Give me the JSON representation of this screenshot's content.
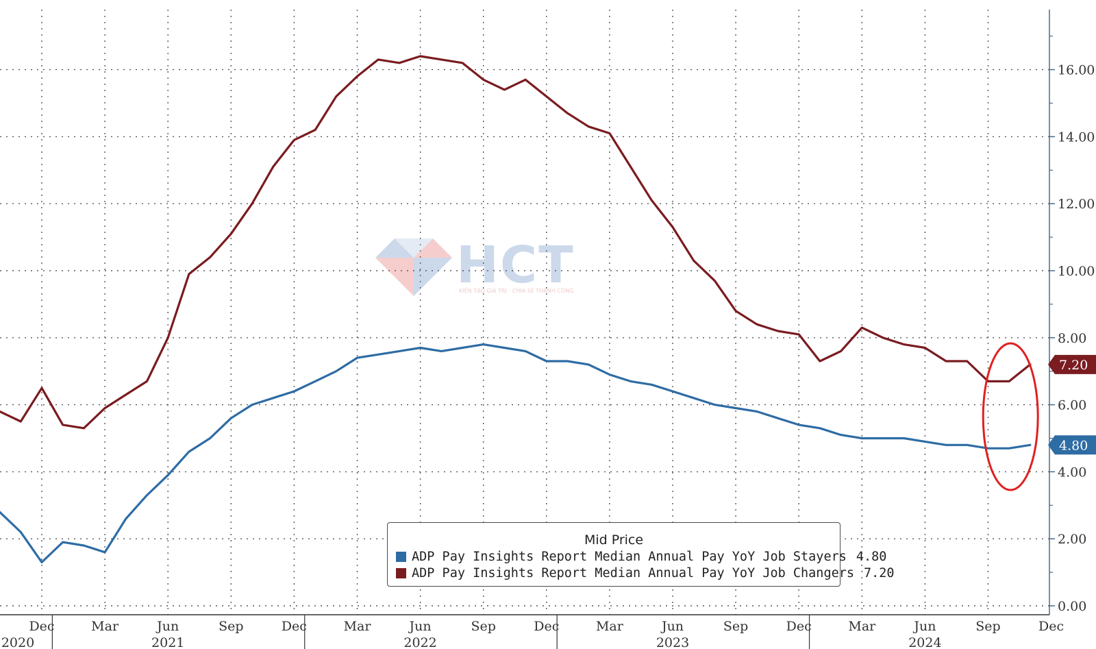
{
  "chart_data": {
    "type": "line",
    "legend": {
      "title": "Mid Price",
      "placement": "bottom-center"
    },
    "y_axis": {
      "side": "right",
      "ylim": [
        0,
        17.6
      ],
      "ticks": [
        0,
        2,
        4,
        6,
        8,
        10,
        12,
        14,
        16
      ],
      "tick_labels": [
        "0.00",
        "2.00",
        "4.00",
        "6.00",
        "8.00",
        "10.00",
        "12.00",
        "14.00",
        "16.00"
      ]
    },
    "x_axis": {
      "range": [
        "2020-10",
        "2024-12"
      ],
      "month_ticks": [
        {
          "date": "2020-12",
          "label": "Dec"
        },
        {
          "date": "2021-03",
          "label": "Mar"
        },
        {
          "date": "2021-06",
          "label": "Jun"
        },
        {
          "date": "2021-09",
          "label": "Sep"
        },
        {
          "date": "2021-12",
          "label": "Dec"
        },
        {
          "date": "2022-03",
          "label": "Mar"
        },
        {
          "date": "2022-06",
          "label": "Jun"
        },
        {
          "date": "2022-09",
          "label": "Sep"
        },
        {
          "date": "2022-12",
          "label": "Dec"
        },
        {
          "date": "2023-03",
          "label": "Mar"
        },
        {
          "date": "2023-06",
          "label": "Jun"
        },
        {
          "date": "2023-09",
          "label": "Sep"
        },
        {
          "date": "2023-12",
          "label": "Dec"
        },
        {
          "date": "2024-03",
          "label": "Mar"
        },
        {
          "date": "2024-06",
          "label": "Jun"
        },
        {
          "date": "2024-09",
          "label": "Sep"
        },
        {
          "date": "2024-12",
          "label": "Dec"
        }
      ],
      "year_labels": [
        {
          "date": "2020-10",
          "label": "2020"
        },
        {
          "date": "2021-06",
          "label": "2021"
        },
        {
          "date": "2022-06",
          "label": "2022"
        },
        {
          "date": "2023-06",
          "label": "2023"
        },
        {
          "date": "2024-06",
          "label": "2024"
        }
      ]
    },
    "grid": true,
    "x": [
      "2020-10",
      "2020-11",
      "2020-12",
      "2021-01",
      "2021-02",
      "2021-03",
      "2021-04",
      "2021-05",
      "2021-06",
      "2021-07",
      "2021-08",
      "2021-09",
      "2021-10",
      "2021-11",
      "2021-12",
      "2022-01",
      "2022-02",
      "2022-03",
      "2022-04",
      "2022-05",
      "2022-06",
      "2022-07",
      "2022-08",
      "2022-09",
      "2022-10",
      "2022-11",
      "2022-12",
      "2023-01",
      "2023-02",
      "2023-03",
      "2023-04",
      "2023-05",
      "2023-06",
      "2023-07",
      "2023-08",
      "2023-09",
      "2023-10",
      "2023-11",
      "2023-12",
      "2024-01",
      "2024-02",
      "2024-03",
      "2024-04",
      "2024-05",
      "2024-06",
      "2024-07",
      "2024-08",
      "2024-09",
      "2024-10",
      "2024-11"
    ],
    "series": [
      {
        "name": "ADP Pay Insights Report Median Annual Pay YoY Job Stayers",
        "last_value_label": "4.80",
        "color": "#2e6ca4",
        "values": [
          2.8,
          2.2,
          1.3,
          1.9,
          1.8,
          1.6,
          2.6,
          3.3,
          3.9,
          4.6,
          5.0,
          5.6,
          6.0,
          6.2,
          6.4,
          6.7,
          7.0,
          7.4,
          7.5,
          7.6,
          7.7,
          7.6,
          7.7,
          7.8,
          7.7,
          7.6,
          7.3,
          7.3,
          7.2,
          6.9,
          6.7,
          6.6,
          6.4,
          6.2,
          6.0,
          5.9,
          5.8,
          5.6,
          5.4,
          5.3,
          5.1,
          5.0,
          5.0,
          5.0,
          4.9,
          4.8,
          4.8,
          4.7,
          4.7,
          4.8
        ]
      },
      {
        "name": "ADP Pay Insights Report Median Annual Pay YoY Job Changers",
        "last_value_label": "7.20",
        "color": "#7a1c20",
        "values": [
          5.8,
          5.5,
          6.5,
          5.4,
          5.3,
          5.9,
          6.3,
          6.7,
          8.0,
          9.9,
          10.4,
          11.1,
          12.0,
          13.1,
          13.9,
          14.2,
          15.2,
          15.8,
          16.3,
          16.2,
          16.4,
          16.3,
          16.2,
          15.7,
          15.4,
          15.7,
          15.2,
          14.7,
          14.3,
          14.1,
          13.1,
          12.1,
          11.3,
          10.3,
          9.7,
          8.8,
          8.4,
          8.2,
          8.1,
          7.3,
          7.6,
          8.3,
          8.0,
          7.8,
          7.7,
          7.3,
          7.3,
          6.7,
          6.7,
          7.2
        ]
      }
    ],
    "annotation": {
      "type": "ellipse",
      "color": "#e02020",
      "around_dates": [
        "2024-09",
        "2024-11"
      ]
    }
  },
  "watermark": {
    "brand": "HCT",
    "tagline": "KIẾN TẠO GIÁ TRỊ - CHIA SẺ THÀNH CÔNG"
  }
}
